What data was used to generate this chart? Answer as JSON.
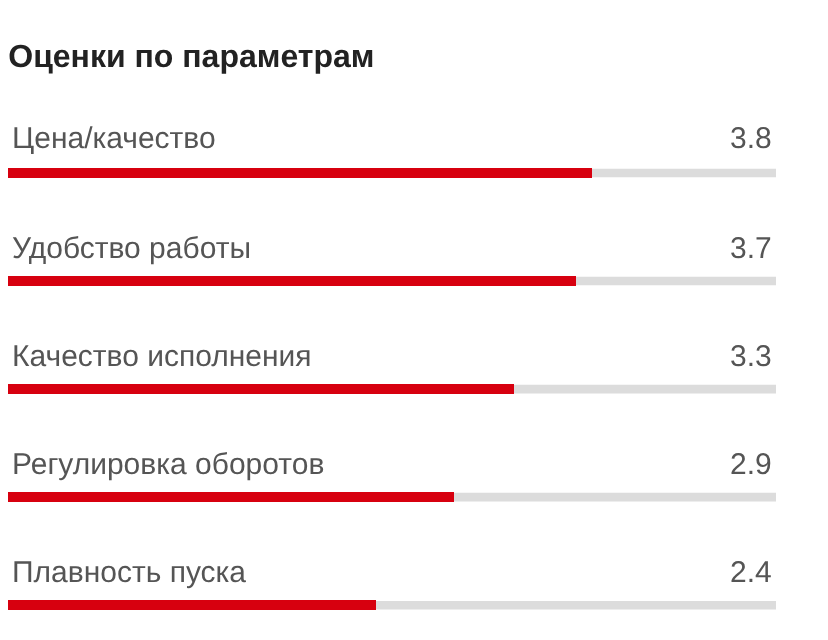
{
  "chart_data": {
    "type": "bar",
    "orientation": "horizontal",
    "title": "Оценки по параметрам",
    "categories": [
      "Цена/качество",
      "Удобство работы",
      "Качество исполнения",
      "Регулировка оборотов",
      "Плавность пуска"
    ],
    "values": [
      3.8,
      3.7,
      3.3,
      2.9,
      2.4
    ],
    "color": "#d7000f",
    "xlim": [
      0,
      5
    ],
    "tick_labels": false,
    "data_labels": true
  }
}
